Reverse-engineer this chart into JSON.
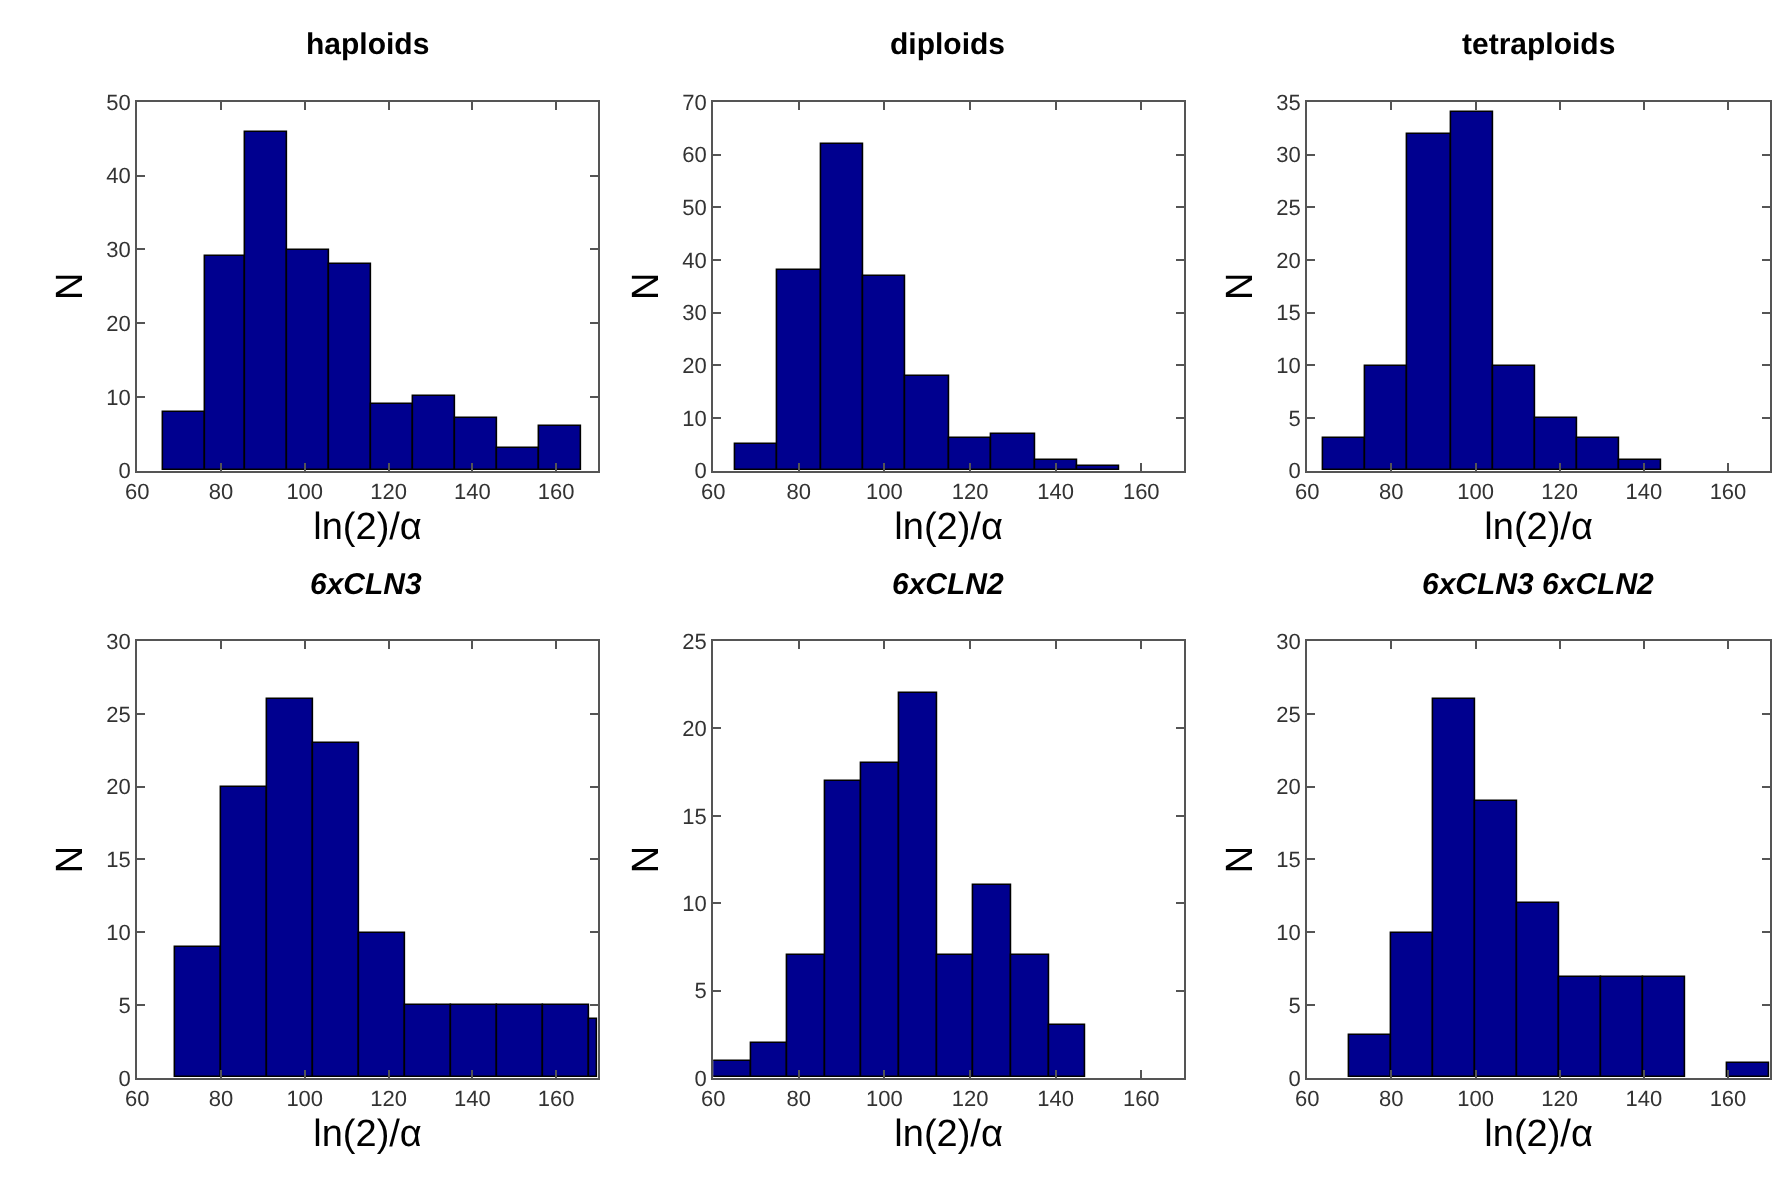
{
  "chart_data": [
    {
      "type": "histogram",
      "title": "haploids",
      "xlabel": "ln(2)/α",
      "ylabel": "N",
      "color": "#00008f",
      "bins": [
        66,
        76,
        86,
        96,
        106,
        116,
        126,
        136,
        146,
        156,
        166
      ],
      "values": [
        8,
        29,
        46,
        30,
        28,
        9,
        10,
        7,
        3,
        6
      ],
      "xlim": [
        60,
        170
      ],
      "xticks": [
        60,
        80,
        100,
        120,
        140,
        160
      ],
      "ylim": [
        0,
        50
      ],
      "yticks": [
        0,
        10,
        20,
        30,
        40,
        50
      ]
    },
    {
      "type": "histogram",
      "title": "diploids",
      "xlabel": "ln(2)/α",
      "ylabel": "N",
      "color": "#00008f",
      "bins": [
        65,
        75,
        85,
        95,
        105,
        115,
        125,
        135,
        145,
        155
      ],
      "values": [
        5,
        38,
        62,
        37,
        18,
        6,
        7,
        2,
        1
      ],
      "xlim": [
        60,
        170
      ],
      "xticks": [
        60,
        80,
        100,
        120,
        140,
        160
      ],
      "ylim": [
        0,
        70
      ],
      "yticks": [
        0,
        10,
        20,
        30,
        40,
        50,
        60,
        70
      ]
    },
    {
      "type": "histogram",
      "title": "tetraploids",
      "xlabel": "ln(2)/α",
      "ylabel": "N",
      "color": "#00008f",
      "bins": [
        64,
        74,
        84,
        94,
        104,
        114,
        124,
        134,
        144
      ],
      "values": [
        3,
        10,
        32,
        34,
        10,
        5,
        3,
        1
      ],
      "xlim": [
        60,
        170
      ],
      "xticks": [
        60,
        80,
        100,
        120,
        140,
        160
      ],
      "ylim": [
        0,
        35
      ],
      "yticks": [
        0,
        5,
        10,
        15,
        20,
        25,
        30,
        35
      ]
    },
    {
      "type": "histogram",
      "title": "6xCLN3",
      "xlabel": "ln(2)/α",
      "ylabel": "N",
      "color": "#00008f",
      "bins": [
        69,
        80,
        91,
        102,
        113,
        124,
        135,
        146,
        157,
        168,
        170
      ],
      "values": [
        9,
        20,
        26,
        23,
        10,
        5,
        5,
        5,
        5,
        4
      ],
      "xlim": [
        60,
        170
      ],
      "xticks": [
        60,
        80,
        100,
        120,
        140,
        160
      ],
      "ylim": [
        0,
        30
      ],
      "yticks": [
        0,
        5,
        10,
        15,
        20,
        25,
        30
      ]
    },
    {
      "type": "histogram",
      "title": "6xCLN2",
      "xlabel": "ln(2)/α",
      "ylabel": "N",
      "color": "#00008f",
      "bins": [
        60,
        68.7,
        77.4,
        86.1,
        94.8,
        103.5,
        112.2,
        120.9,
        129.6,
        138.3,
        147
      ],
      "values": [
        1,
        2,
        7,
        17,
        18,
        22,
        7,
        11,
        7,
        3
      ],
      "xlim": [
        60,
        170
      ],
      "xticks": [
        60,
        80,
        100,
        120,
        140,
        160
      ],
      "ylim": [
        0,
        25
      ],
      "yticks": [
        0,
        5,
        10,
        15,
        20,
        25
      ]
    },
    {
      "type": "histogram",
      "title": "6xCLN3 6xCLN2",
      "xlabel": "ln(2)/α",
      "ylabel": "N",
      "color": "#00008f",
      "bins": [
        70,
        80,
        90,
        100,
        110,
        120,
        130,
        140,
        150,
        160,
        170
      ],
      "values": [
        3,
        10,
        26,
        19,
        12,
        7,
        7,
        7,
        0,
        1
      ],
      "xlim": [
        60,
        170
      ],
      "xticks": [
        60,
        80,
        100,
        120,
        140,
        160
      ],
      "ylim": [
        0,
        30
      ],
      "yticks": [
        0,
        5,
        10,
        15,
        20,
        25,
        30
      ]
    }
  ]
}
